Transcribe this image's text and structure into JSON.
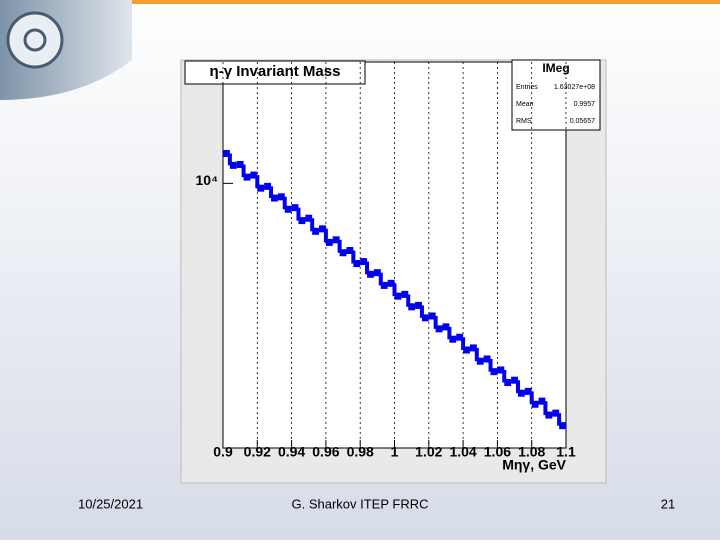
{
  "chart_data": {
    "type": "histogram",
    "title": "η-γ Invariant Mass",
    "x_label": "Mηγ, GeV",
    "bins": [
      0.9,
      0.904,
      0.908,
      0.912,
      0.916,
      0.92,
      0.924,
      0.928,
      0.932,
      0.936,
      0.94,
      0.944,
      0.948,
      0.952,
      0.956,
      0.96,
      0.964,
      0.968,
      0.972,
      0.976,
      0.98,
      0.984,
      0.988,
      0.992,
      0.996,
      1,
      1.004,
      1.008,
      1.012,
      1.016,
      1.02,
      1.024,
      1.028,
      1.032,
      1.036,
      1.04,
      1.044,
      1.048,
      1.052,
      1.056,
      1.06,
      1.064,
      1.068,
      1.072,
      1.076,
      1.08,
      1.084,
      1.088,
      1.092,
      1.096,
      1.1
    ],
    "values": [
      11050,
      10620,
      10650,
      10210,
      10280,
      9840,
      9900,
      9520,
      9560,
      9170,
      9220,
      8830,
      8900,
      8520,
      8590,
      8210,
      8280,
      7930,
      7990,
      7650,
      7700,
      7380,
      7420,
      7110,
      7160,
      6860,
      6900,
      6620,
      6650,
      6380,
      6420,
      6150,
      6190,
      5940,
      5980,
      5730,
      5770,
      5520,
      5560,
      5330,
      5360,
      5140,
      5180,
      4960,
      4990,
      4780,
      4830,
      4610,
      4640,
      4450
    ],
    "color": "#0000ee",
    "xlim": [
      0.9,
      1.1
    ],
    "xticks": [
      0.9,
      0.92,
      0.94,
      0.96,
      0.98,
      1,
      1.02,
      1.04,
      1.06,
      1.08,
      1.1
    ],
    "ylim": [
      4130,
      15000
    ],
    "log_y": true,
    "yticks": [
      {
        "value": 10000,
        "label": "10⁴"
      }
    ],
    "grid": "x",
    "stats": {
      "title": "IMeg",
      "rows": [
        [
          "Entries",
          "1.63027e+08"
        ],
        [
          "Mean",
          "0.9957"
        ],
        [
          "RMS",
          "0.05657"
        ]
      ]
    }
  },
  "footer": {
    "date": "10/25/2021",
    "author": "G. Sharkov ITEP FRRC",
    "page": "21"
  }
}
